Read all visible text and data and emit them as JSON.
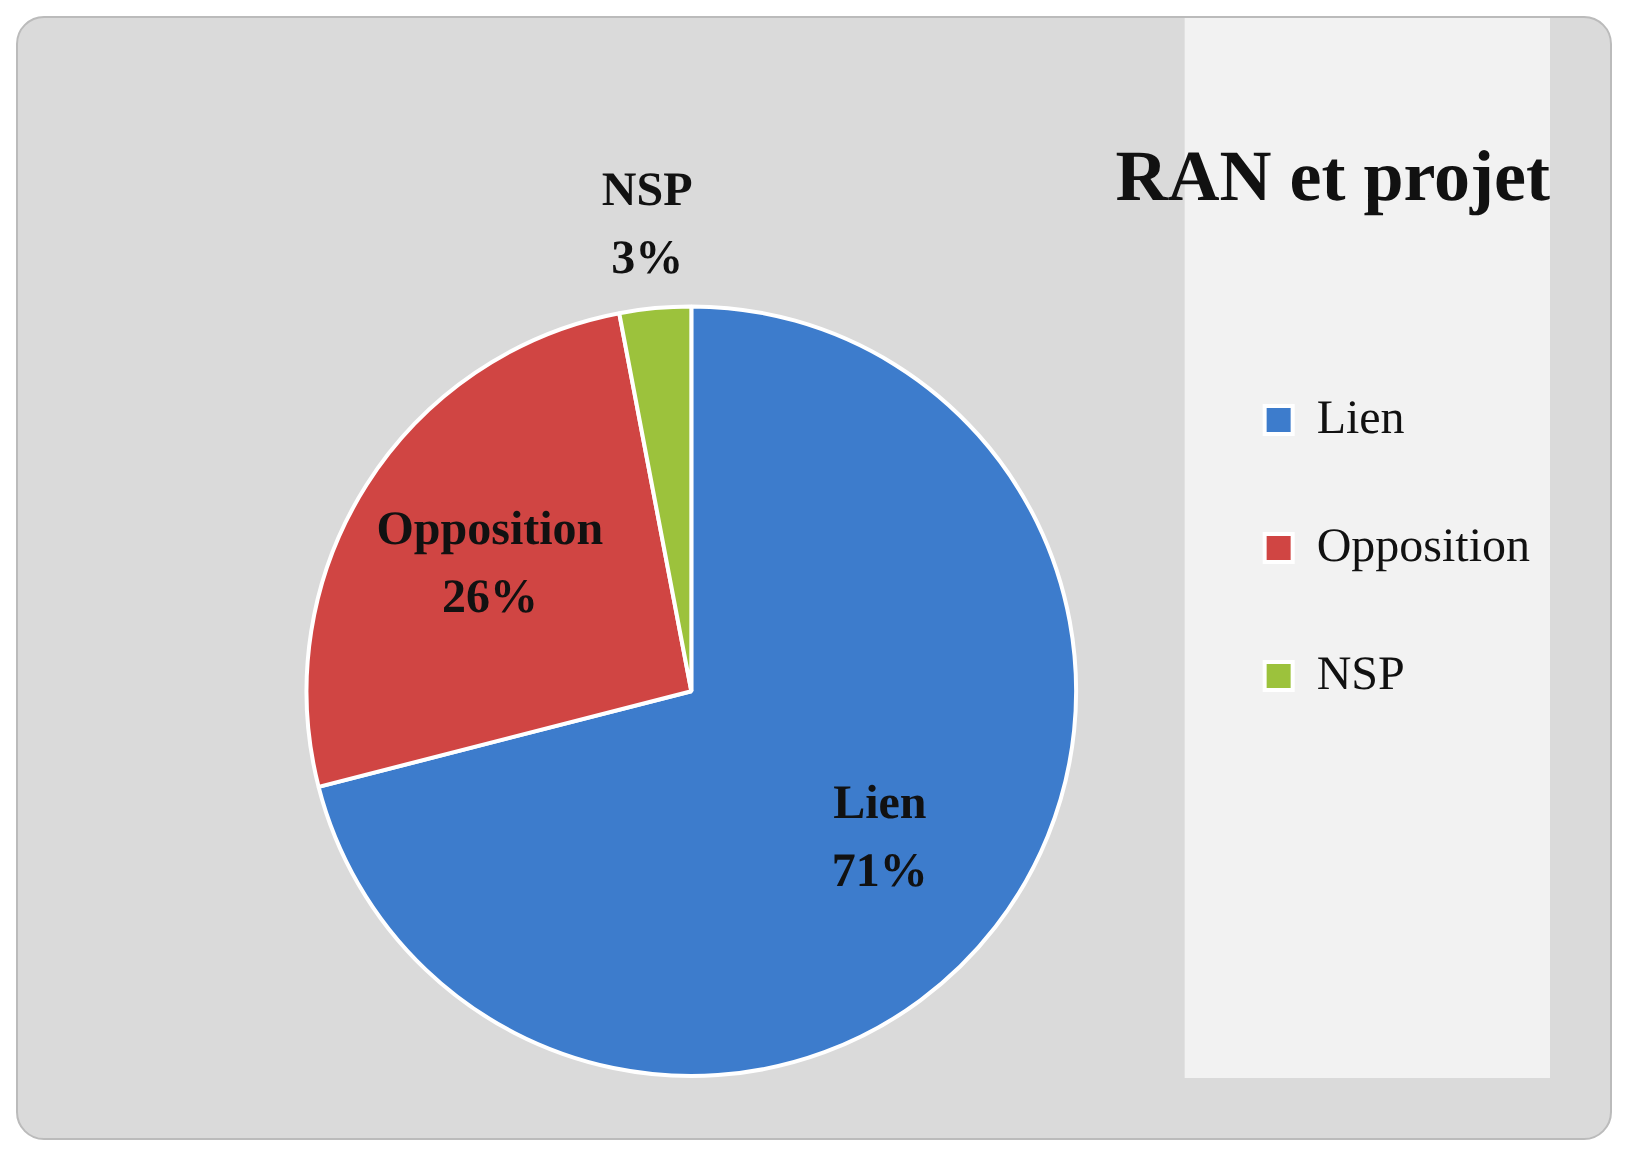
{
  "chart_data": {
    "type": "pie",
    "title": "RAN et projet",
    "categories": [
      "Lien",
      "Opposition",
      "NSP"
    ],
    "values": [
      71,
      26,
      3
    ],
    "value_labels": [
      "71%",
      "26%",
      "3%"
    ],
    "colors": [
      "#3d7ccc",
      "#d04543",
      "#9cc23c"
    ],
    "legend": "right"
  }
}
